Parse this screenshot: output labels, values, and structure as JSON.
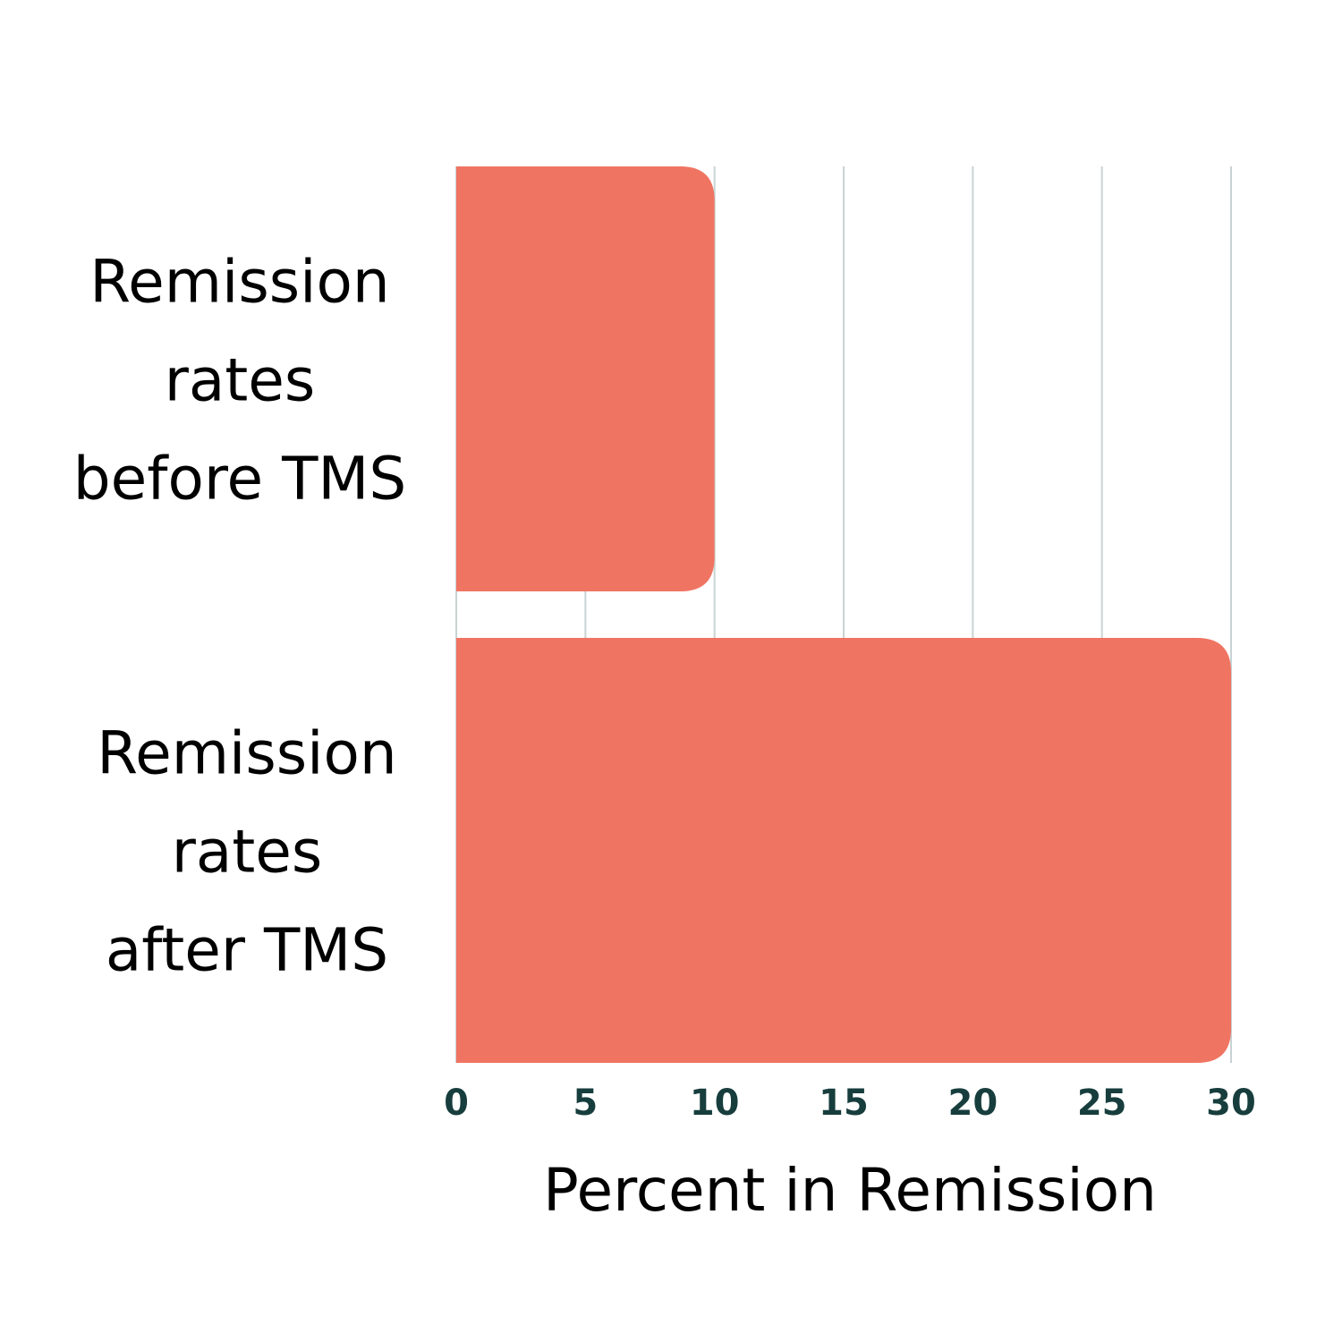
{
  "chart_data": {
    "type": "bar",
    "orientation": "horizontal",
    "categories": [
      [
        "Remission",
        "rates",
        "before TMS"
      ],
      [
        "Remission",
        "rates",
        "after TMS"
      ]
    ],
    "values": [
      10,
      30
    ],
    "xlabel": "Percent in Remission",
    "xlim": [
      0,
      30
    ],
    "xticks": [
      "0",
      "5",
      "10",
      "15",
      "20",
      "25",
      "30"
    ],
    "grid": true,
    "colors": {
      "bar": "#F07462",
      "grid": "#C9D3D4",
      "tick_label": "#173D3D",
      "text": "#000000"
    }
  }
}
